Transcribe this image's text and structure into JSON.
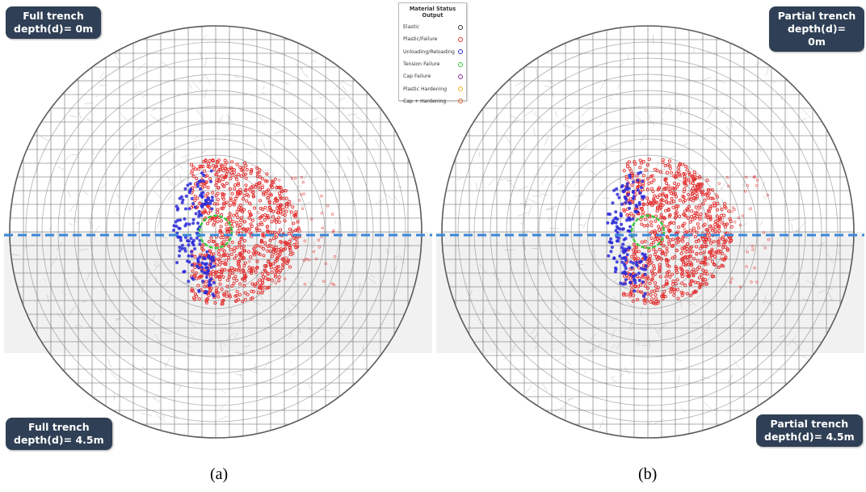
{
  "panels": [
    {
      "id": "a",
      "caption": "(a)",
      "top_label": [
        "Full trench",
        "depth(d)= 0m"
      ],
      "bottom_label": [
        "Full trench",
        "depth(d)= 4.5m"
      ]
    },
    {
      "id": "b",
      "caption": "(b)",
      "top_label": [
        "Partial trench",
        "depth(d)= 0m"
      ],
      "bottom_label": [
        "Partial trench",
        "depth(d)= 4.5m"
      ]
    }
  ],
  "legend": {
    "title": "Material Status Output",
    "items": [
      {
        "label": "Elastic",
        "color": "#333333"
      },
      {
        "label": "Plastic/Failure",
        "color": "#e53030"
      },
      {
        "label": "Unloading/Reloading",
        "color": "#2a2ad8"
      },
      {
        "label": "Tension Failure",
        "color": "#38c838"
      },
      {
        "label": "Cap Failure",
        "color": "#8a2a9a"
      },
      {
        "label": "Plastic Hardening",
        "color": "#f0b020"
      },
      {
        "label": "Cap + Hardening",
        "color": "#e06020"
      }
    ]
  },
  "colors": {
    "mesh": "#6d6d6d",
    "plastic": "#e53030",
    "unloading": "#2a2ad8",
    "tension": "#38c838",
    "divider": "#3a86d8",
    "label_bg": "#2f3f55"
  }
}
